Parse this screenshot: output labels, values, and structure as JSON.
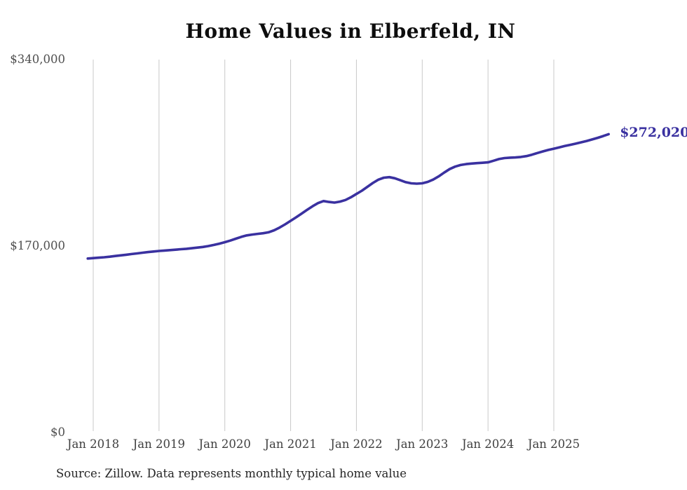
{
  "title": "Home Values in Elberfeld, IN",
  "source_note": "Source: Zillow. Data represents monthly typical home value",
  "colors": {
    "line": "#3a31a0",
    "end_label": "#3a31a0",
    "grid": "#c9c9c9",
    "title_text": "#0d0d0d",
    "axis_text": "#3f3f3f",
    "source_text": "#262626"
  },
  "chart_data": {
    "type": "line",
    "title": "Home Values in Elberfeld, IN",
    "xlabel": "",
    "ylabel": "",
    "ylim": [
      0,
      340000
    ],
    "grid": "vertical-only",
    "legend": "none",
    "y_ticks": [
      {
        "label": "$340,000",
        "value": 340000
      },
      {
        "label": "$170,000",
        "value": 170000
      },
      {
        "label": "$0",
        "value": 0
      }
    ],
    "x_tick_labels": [
      "Jan 2018",
      "Jan 2019",
      "Jan 2020",
      "Jan 2021",
      "Jan 2022",
      "Jan 2023",
      "Jan 2024",
      "Jan 2025"
    ],
    "end_label": "$272,020",
    "final_value": 272020,
    "series": [
      {
        "name": "Monthly typical home value",
        "x_start": "Dec 2017",
        "x_interval": "month",
        "start_month_offset": -1,
        "values": [
          158600,
          159000,
          159400,
          159800,
          160300,
          160900,
          161500,
          162100,
          162700,
          163300,
          163900,
          164500,
          165000,
          165500,
          165900,
          166300,
          166700,
          167100,
          167500,
          168000,
          168600,
          169200,
          170000,
          171000,
          172200,
          173500,
          175000,
          176700,
          178400,
          179700,
          180500,
          181100,
          181700,
          182600,
          184400,
          186900,
          189800,
          193000,
          196200,
          199600,
          203000,
          206300,
          209200,
          211000,
          210200,
          209600,
          210500,
          212000,
          214500,
          217500,
          220500,
          224000,
          227500,
          230500,
          232300,
          232800,
          231800,
          230000,
          228200,
          227200,
          226900,
          227200,
          228500,
          230600,
          233500,
          237000,
          240200,
          242400,
          243900,
          244700,
          245200,
          245600,
          245900,
          246300,
          247800,
          249300,
          250200,
          250600,
          250800,
          251200,
          252000,
          253300,
          254800,
          256300,
          257600,
          258800,
          260000,
          261200,
          262300,
          263400,
          264600,
          265800,
          267200,
          268700,
          270300,
          272020
        ]
      }
    ]
  }
}
